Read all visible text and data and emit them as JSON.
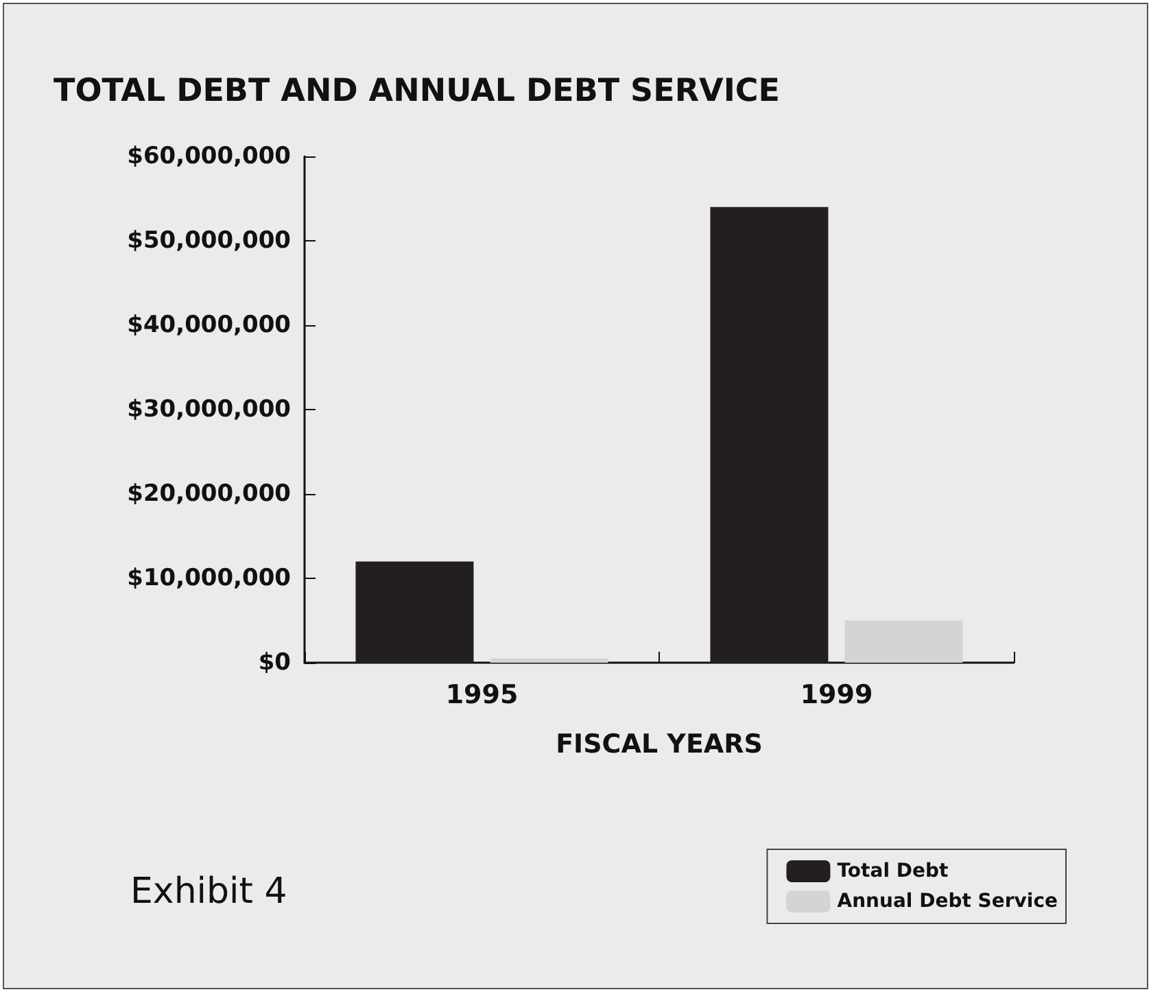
{
  "chart_data": {
    "type": "bar",
    "title": "TOTAL DEBT AND ANNUAL DEBT SERVICE",
    "xlabel": "FISCAL YEARS",
    "categories": [
      "1995",
      "1999"
    ],
    "series": [
      {
        "name": "Total Debt",
        "color": "#231f20",
        "values": [
          12000000,
          54000000
        ]
      },
      {
        "name": "Annual Debt Service",
        "color": "#d4d4d4",
        "values": [
          500000,
          5000000
        ]
      }
    ],
    "ylim": [
      0,
      60000000
    ],
    "yticks": [
      {
        "value": 0,
        "label": "$0"
      },
      {
        "value": 10000000,
        "label": "$10,000,000"
      },
      {
        "value": 20000000,
        "label": "$20,000,000"
      },
      {
        "value": 30000000,
        "label": "$30,000,000"
      },
      {
        "value": 40000000,
        "label": "$40,000,000"
      },
      {
        "value": 50000000,
        "label": "$50,000,000"
      },
      {
        "value": 60000000,
        "label": "$60,000,000"
      }
    ],
    "grid": false,
    "legend": "bottom right",
    "annotations": [
      "Exhibit 4"
    ]
  }
}
